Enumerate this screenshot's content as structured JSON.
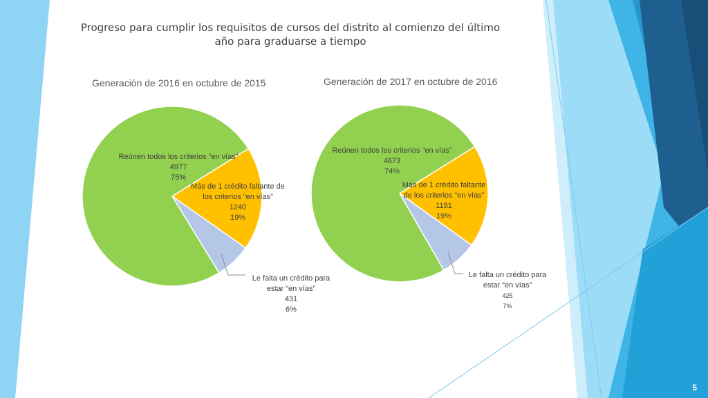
{
  "slide": {
    "title_line1": "Progreso para cumplir los requisitos de cursos del distrito al comienzo del último",
    "title_line2": "año para graduarse a tiempo",
    "number": "5"
  },
  "colors": {
    "green": "#92d050",
    "orange": "#ffc000",
    "lightblue": "#b4c7e7",
    "deco_light": "#8fd3f5",
    "deco_mid": "#29a3dc",
    "deco_dark": "#1f5f8f"
  },
  "chart_data": [
    {
      "type": "pie",
      "title": "Generación de 2016 en octubre de 2015",
      "slices": [
        {
          "label_lines": [
            "Reúnen todos los criterios “en vías”"
          ],
          "value": 4977,
          "percent": "75%",
          "color": "#92d050"
        },
        {
          "label_lines": [
            "Más de 1 crédito faltante de",
            "los criterios “en vías”"
          ],
          "value": 1240,
          "percent": "19%",
          "color": "#ffc000"
        },
        {
          "label_lines": [
            "Le falta un crédito para",
            "estar “en vías”"
          ],
          "value": 431,
          "percent": "6%",
          "color": "#b4c7e7"
        }
      ]
    },
    {
      "type": "pie",
      "title": "Generación de 2017 en octubre de 2016",
      "slices": [
        {
          "label_lines": [
            "Reúnen todos los criterios “en vías”"
          ],
          "value": 4673,
          "percent": "74%",
          "color": "#92d050"
        },
        {
          "label_lines": [
            "Más de 1 crédito faltante",
            "de los criterios “en vías”"
          ],
          "value": 1181,
          "percent": "19%",
          "color": "#ffc000"
        },
        {
          "label_lines": [
            "Le falta un crédito para",
            "estar “en vías”"
          ],
          "value": 425,
          "percent": "7%",
          "color": "#b4c7e7"
        }
      ]
    }
  ]
}
